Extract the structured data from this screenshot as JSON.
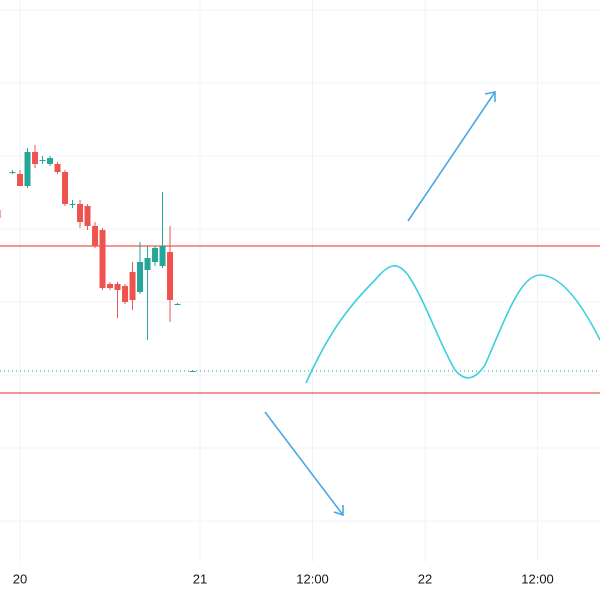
{
  "chart_data": {
    "type": "candlestick",
    "x": [
      -3,
      -1,
      0,
      1,
      2,
      3,
      4,
      5,
      6,
      7,
      8,
      9,
      10,
      11,
      12,
      13,
      14,
      15,
      16,
      17,
      18,
      19,
      20,
      21,
      23
    ],
    "open": [
      390,
      428,
      426,
      414,
      448,
      440,
      436,
      436,
      428,
      396,
      396,
      394,
      374,
      370,
      316,
      316,
      314,
      328,
      308,
      330,
      338,
      334,
      348,
      296,
      229
    ],
    "close": [
      382,
      428,
      414,
      448,
      436,
      440,
      442,
      428,
      396,
      396,
      378,
      374,
      354,
      312,
      312,
      310,
      298,
      300,
      338,
      342,
      352,
      354,
      300,
      296,
      229
    ],
    "high": [
      392,
      430,
      430,
      452,
      455,
      444,
      444,
      438,
      430,
      400,
      400,
      396,
      378,
      372,
      318,
      318,
      316,
      338,
      358,
      354,
      354,
      408,
      374,
      297,
      230
    ],
    "low": [
      380,
      426,
      414,
      412,
      432,
      436,
      434,
      426,
      394,
      392,
      372,
      370,
      352,
      310,
      310,
      282,
      296,
      290,
      306,
      260,
      334,
      332,
      278,
      295,
      228
    ],
    "colors": {
      "up": "#26a69a",
      "down": "#ef5350"
    },
    "levels": [
      {
        "value": 354,
        "color": "#ef5350"
      },
      {
        "value": 207,
        "color": "#ef5350"
      }
    ],
    "last_price": {
      "value": 229,
      "color": "#26a69a"
    },
    "xlim": [
      -2.67,
      77.33
    ],
    "ylim": [
      0,
      600
    ],
    "xticks": [
      {
        "value": 0,
        "label": "20"
      },
      {
        "value": 24,
        "label": "21"
      },
      {
        "value": 39,
        "label": "12:00"
      },
      {
        "value": 54,
        "label": "22"
      },
      {
        "value": 69,
        "label": "12:00"
      }
    ],
    "grid": true
  }
}
